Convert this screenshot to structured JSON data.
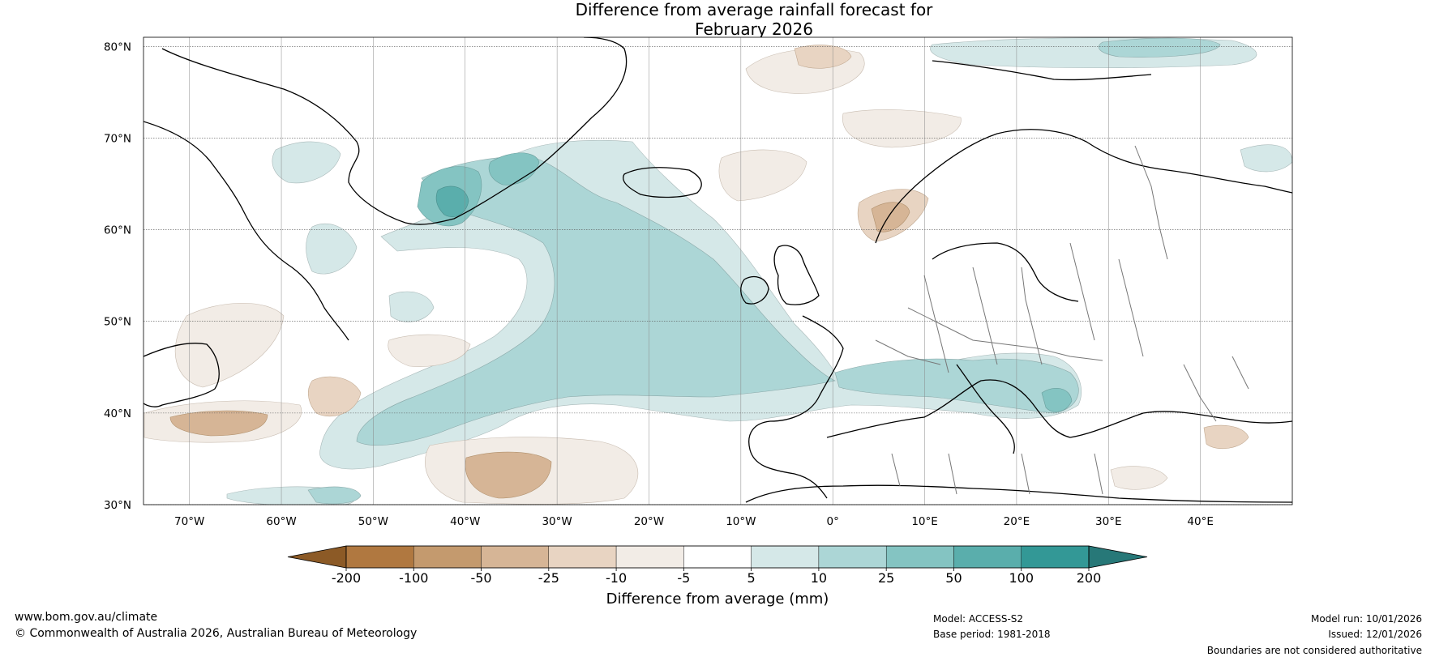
{
  "title_line1": "Difference from average rainfall forecast for",
  "title_line2": "February 2026",
  "map": {
    "lat_labels": [
      "80°N",
      "70°N",
      "60°N",
      "50°N",
      "40°N",
      "30°N"
    ],
    "lon_labels": [
      "70°W",
      "60°W",
      "50°W",
      "40°W",
      "30°W",
      "20°W",
      "10°W",
      "0°",
      "10°E",
      "20°E",
      "30°E",
      "40°E"
    ],
    "lat_values": [
      80,
      70,
      60,
      50,
      40,
      30
    ],
    "lon_values": [
      -70,
      -60,
      -50,
      -40,
      -30,
      -20,
      -10,
      0,
      10,
      20,
      30,
      40
    ],
    "extent": {
      "lon_min": -75,
      "lon_max": 50,
      "lat_min": 30,
      "lat_max": 81
    }
  },
  "colorbar": {
    "label": "Difference from average (mm)",
    "ticks": [
      "-200",
      "-100",
      "-50",
      "-25",
      "-10",
      "-5",
      "5",
      "10",
      "25",
      "50",
      "100",
      "200"
    ],
    "colors": [
      "#8c5a26",
      "#b07840",
      "#c49a6e",
      "#d6b596",
      "#e8d4c2",
      "#f2ece6",
      "#ffffff",
      "#d5e8e8",
      "#acd6d6",
      "#84c4c2",
      "#5aaeac",
      "#339896",
      "#277878"
    ]
  },
  "footer": {
    "website": "www.bom.gov.au/climate",
    "copyright": "© Commonwealth of Australia 2026, Australian Bureau of Meteorology",
    "model": "Model: ACCESS-S2",
    "base_period": "Base period: 1981-2018",
    "model_run": "Model run: 10/01/2026",
    "issued": "Issued: 12/01/2026",
    "disclaimer": "Boundaries are not considered authoritative"
  }
}
